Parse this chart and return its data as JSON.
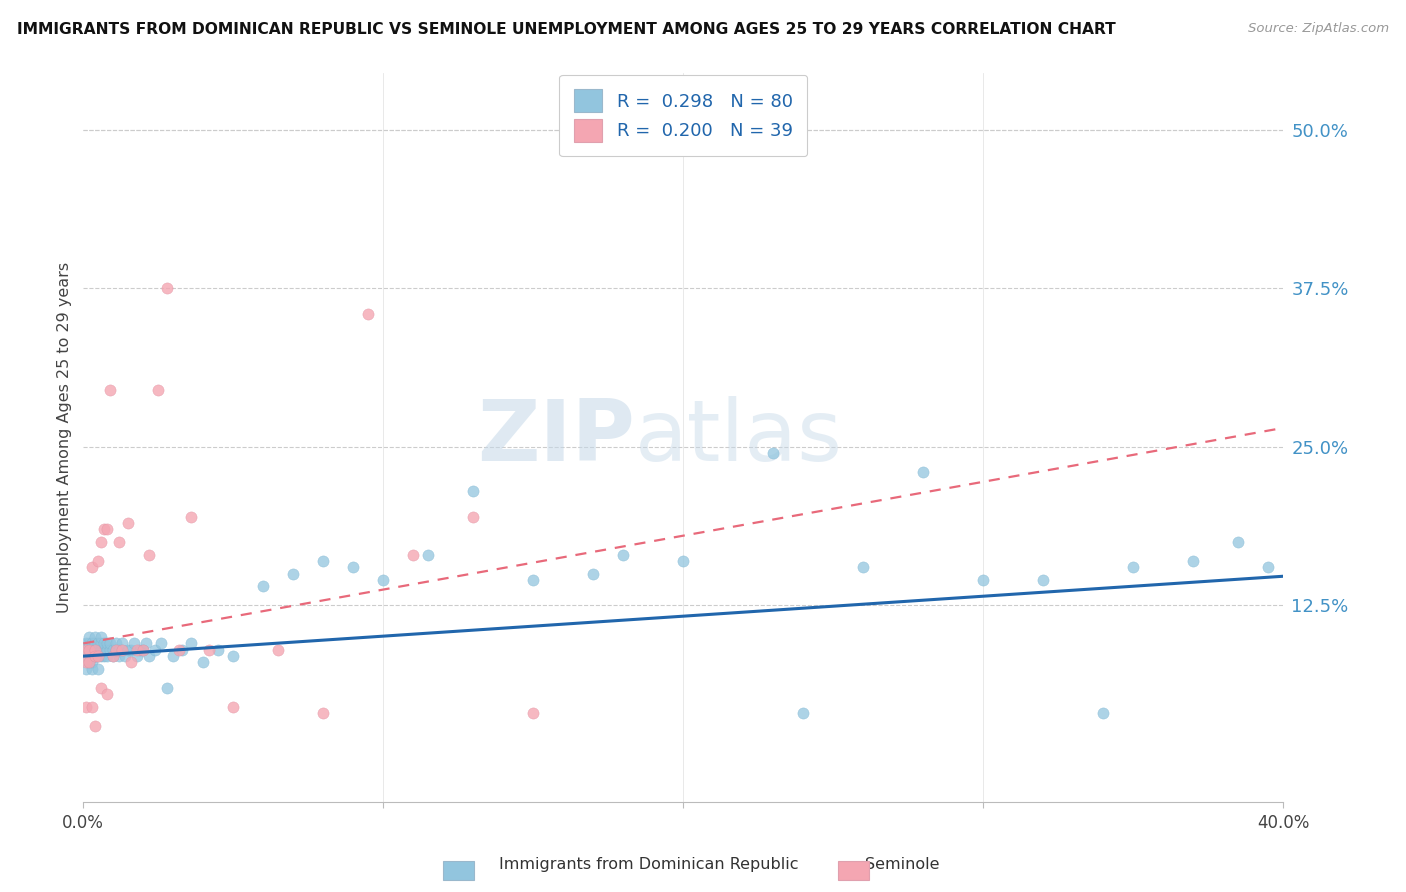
{
  "title": "IMMIGRANTS FROM DOMINICAN REPUBLIC VS SEMINOLE UNEMPLOYMENT AMONG AGES 25 TO 29 YEARS CORRELATION CHART",
  "source": "Source: ZipAtlas.com",
  "ylabel": "Unemployment Among Ages 25 to 29 years",
  "yticks": [
    "50.0%",
    "37.5%",
    "25.0%",
    "12.5%"
  ],
  "ytick_vals": [
    0.5,
    0.375,
    0.25,
    0.125
  ],
  "xmin": 0.0,
  "xmax": 0.4,
  "ymin": -0.03,
  "ymax": 0.545,
  "legend_r1": "R =  0.298",
  "legend_n1": "N = 80",
  "legend_r2": "R =  0.200",
  "legend_n2": "N = 39",
  "color_blue": "#92c5de",
  "color_pink": "#f4a6b2",
  "trendline_blue": "#2166ac",
  "trendline_pink": "#e8697a",
  "background_color": "#ffffff",
  "grid_color": "#cccccc",
  "watermark_zip": "ZIP",
  "watermark_atlas": "atlas",
  "blue_trendline_x0": 0.0,
  "blue_trendline_y0": 0.085,
  "blue_trendline_x1": 0.4,
  "blue_trendline_y1": 0.148,
  "pink_trendline_x0": 0.0,
  "pink_trendline_y0": 0.095,
  "pink_trendline_x1": 0.4,
  "pink_trendline_y1": 0.265,
  "blue_x": [
    0.001,
    0.001,
    0.001,
    0.002,
    0.002,
    0.002,
    0.002,
    0.003,
    0.003,
    0.003,
    0.003,
    0.003,
    0.004,
    0.004,
    0.004,
    0.004,
    0.005,
    0.005,
    0.005,
    0.005,
    0.006,
    0.006,
    0.006,
    0.006,
    0.007,
    0.007,
    0.007,
    0.008,
    0.008,
    0.008,
    0.009,
    0.009,
    0.01,
    0.01,
    0.011,
    0.011,
    0.012,
    0.012,
    0.013,
    0.013,
    0.014,
    0.015,
    0.016,
    0.017,
    0.018,
    0.019,
    0.02,
    0.021,
    0.022,
    0.024,
    0.026,
    0.028,
    0.03,
    0.033,
    0.036,
    0.04,
    0.045,
    0.05,
    0.06,
    0.07,
    0.08,
    0.09,
    0.1,
    0.115,
    0.13,
    0.15,
    0.17,
    0.2,
    0.23,
    0.26,
    0.3,
    0.32,
    0.35,
    0.37,
    0.385,
    0.395,
    0.28,
    0.18,
    0.24,
    0.34
  ],
  "blue_y": [
    0.085,
    0.095,
    0.075,
    0.09,
    0.095,
    0.08,
    0.1,
    0.085,
    0.09,
    0.095,
    0.075,
    0.08,
    0.09,
    0.095,
    0.085,
    0.1,
    0.085,
    0.09,
    0.095,
    0.075,
    0.09,
    0.085,
    0.095,
    0.1,
    0.085,
    0.09,
    0.095,
    0.085,
    0.09,
    0.095,
    0.09,
    0.095,
    0.085,
    0.09,
    0.09,
    0.095,
    0.085,
    0.09,
    0.09,
    0.095,
    0.085,
    0.09,
    0.09,
    0.095,
    0.085,
    0.09,
    0.09,
    0.095,
    0.085,
    0.09,
    0.095,
    0.06,
    0.085,
    0.09,
    0.095,
    0.08,
    0.09,
    0.085,
    0.14,
    0.15,
    0.16,
    0.155,
    0.145,
    0.165,
    0.215,
    0.145,
    0.15,
    0.16,
    0.245,
    0.155,
    0.145,
    0.145,
    0.155,
    0.16,
    0.175,
    0.155,
    0.23,
    0.165,
    0.04,
    0.04
  ],
  "pink_x": [
    0.001,
    0.001,
    0.001,
    0.002,
    0.002,
    0.003,
    0.003,
    0.004,
    0.004,
    0.004,
    0.005,
    0.005,
    0.006,
    0.006,
    0.007,
    0.008,
    0.008,
    0.009,
    0.01,
    0.011,
    0.012,
    0.013,
    0.015,
    0.016,
    0.018,
    0.02,
    0.022,
    0.025,
    0.028,
    0.032,
    0.036,
    0.042,
    0.05,
    0.065,
    0.08,
    0.095,
    0.11,
    0.13,
    0.15
  ],
  "pink_y": [
    0.08,
    0.09,
    0.045,
    0.09,
    0.08,
    0.155,
    0.045,
    0.09,
    0.085,
    0.03,
    0.085,
    0.16,
    0.175,
    0.06,
    0.185,
    0.185,
    0.055,
    0.295,
    0.085,
    0.09,
    0.175,
    0.09,
    0.19,
    0.08,
    0.09,
    0.09,
    0.165,
    0.295,
    0.375,
    0.09,
    0.195,
    0.09,
    0.045,
    0.09,
    0.04,
    0.355,
    0.165,
    0.195,
    0.04
  ]
}
